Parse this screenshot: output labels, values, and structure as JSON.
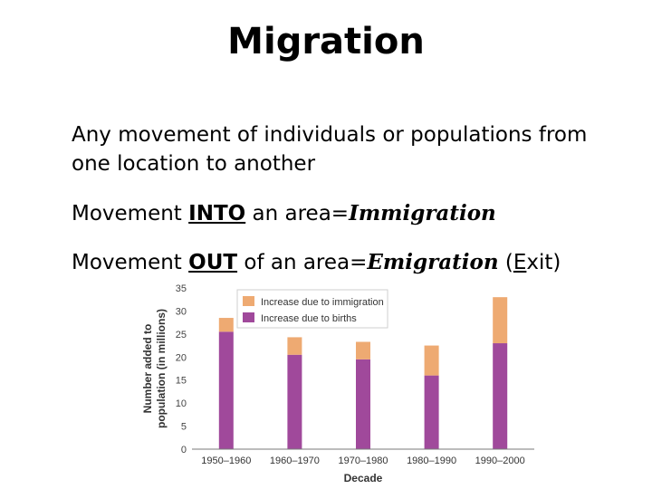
{
  "slide": {
    "title": "Migration",
    "definition": "Any movement of individuals or populations from one location to another",
    "immigration": {
      "prefix": "Movement ",
      "keyword": "INTO",
      "middle": " an area=",
      "term": "Immigration"
    },
    "emigration": {
      "prefix": "Movement ",
      "keyword": "OUT",
      "middle": " of an area=",
      "term": "Emigration",
      "suffix_open": " (",
      "suffix_letter": "E",
      "suffix_rest": "xit)"
    }
  },
  "chart_data": {
    "type": "bar",
    "stacked": true,
    "categories": [
      "1950–1960",
      "1960–1970",
      "1970–1980",
      "1980–1990",
      "1990–2000"
    ],
    "series": [
      {
        "name": "Increase due to births",
        "color": "#a0499b",
        "values": [
          25.5,
          20.5,
          19.5,
          16,
          23
        ]
      },
      {
        "name": "Increase due to immigration",
        "color": "#eeaa72",
        "values": [
          3,
          3.8,
          3.8,
          6.5,
          10
        ]
      }
    ],
    "xlabel": "Decade",
    "ylabel": "Number added to population (in millions)",
    "ylim": [
      0,
      35
    ],
    "yticks": [
      0,
      5,
      10,
      15,
      20,
      25,
      30,
      35
    ],
    "legend_position": "top-left",
    "grid": false
  }
}
